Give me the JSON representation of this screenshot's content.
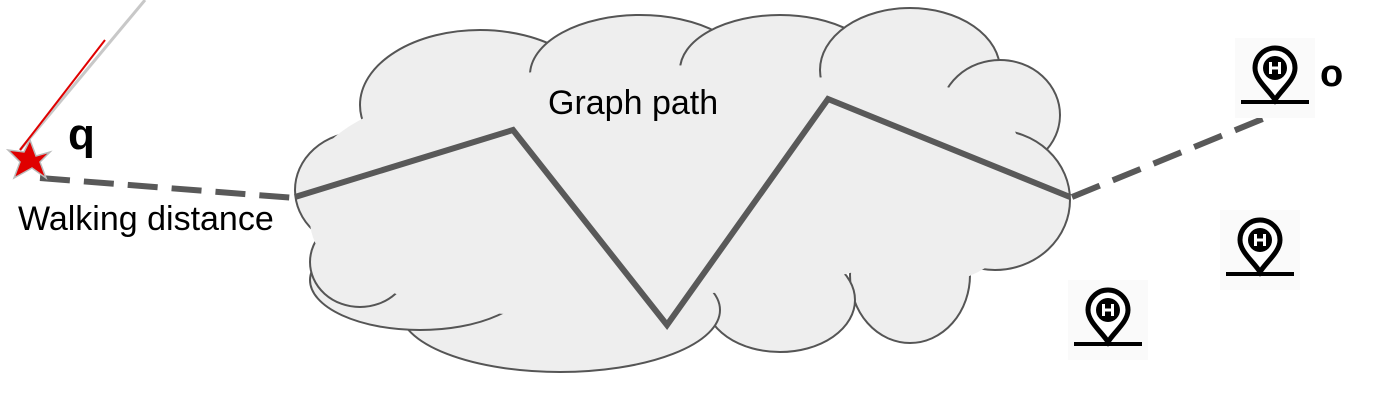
{
  "labels": {
    "graph_path": "Graph path",
    "walking_distance": "Walking distance",
    "query_point": "q",
    "destination": "o"
  },
  "icons": {
    "query_marker": "red-star-icon",
    "hospital_marker": "hospital-location-pin-icon"
  },
  "colors": {
    "cloud_fill": "#eeeeee",
    "cloud_stroke": "#555555",
    "path": "#595959",
    "star": "#e00000",
    "icon": "#000000"
  }
}
